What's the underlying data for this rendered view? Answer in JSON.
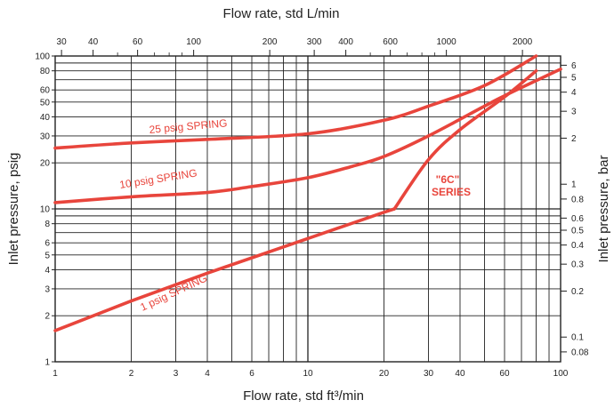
{
  "chart_data": {
    "type": "line",
    "title": "",
    "xlabel": "Flow rate, std ft³/min",
    "x2label": "Flow rate, std L/min",
    "ylabel": "Inlet pressure, psig",
    "y2label": "Inlet pressure, bar",
    "x_scale": "log",
    "y_scale": "log",
    "xlim": [
      1,
      100
    ],
    "ylim": [
      1,
      100
    ],
    "grid": true,
    "colors": {
      "curve": "#e8453c",
      "grid": "#222222"
    },
    "x_ticks": [
      "1",
      "2",
      "3",
      "4",
      "6",
      "10",
      "20",
      "30",
      "40",
      "60",
      "100"
    ],
    "x_tick_values": [
      1,
      2,
      3,
      4,
      6,
      10,
      20,
      30,
      40,
      60,
      100
    ],
    "y_ticks": [
      "1",
      "2",
      "3",
      "4",
      "5",
      "6",
      "8",
      "10",
      "20",
      "30",
      "40",
      "50",
      "60",
      "80",
      "100"
    ],
    "y_tick_values": [
      1,
      2,
      3,
      4,
      5,
      6,
      8,
      10,
      20,
      30,
      40,
      50,
      60,
      80,
      100
    ],
    "x2_ticks": [
      "30",
      "40",
      "60",
      "100",
      "200",
      "300",
      "400",
      "600",
      "1000",
      "2000"
    ],
    "x2_tick_values": [
      30,
      40,
      60,
      100,
      200,
      300,
      400,
      600,
      1000,
      2000
    ],
    "y2_ticks": [
      "0.08",
      "0.1",
      "0.2",
      "0.3",
      "0.4",
      "0.5",
      "0.6",
      "0.8",
      "1",
      "2",
      "3",
      "4",
      "5",
      "6"
    ],
    "y2_tick_values": [
      0.08,
      0.1,
      0.2,
      0.3,
      0.4,
      0.5,
      0.6,
      0.8,
      1,
      2,
      3,
      4,
      5,
      6
    ],
    "series": [
      {
        "name": "25 psig SPRING",
        "x": [
          1,
          2,
          4,
          10,
          20,
          30,
          50,
          80
        ],
        "y": [
          25,
          27,
          28.5,
          31,
          38,
          47,
          64,
          100
        ]
      },
      {
        "name": "10 psig SPRING",
        "x": [
          1,
          2,
          4,
          6,
          10,
          15,
          20,
          30,
          50,
          60,
          100
        ],
        "y": [
          11,
          12,
          12.8,
          14,
          16,
          19,
          22,
          30,
          47,
          55,
          82
        ]
      },
      {
        "name": "1 psig SPRING",
        "x": [
          1,
          2,
          4,
          10,
          20,
          22
        ],
        "y": [
          1.6,
          2.5,
          3.8,
          6.4,
          9.5,
          10
        ]
      },
      {
        "name": "\"6C\" SERIES",
        "x": [
          22,
          30,
          40,
          60,
          80
        ],
        "y": [
          10,
          21,
          33,
          54,
          80
        ]
      }
    ],
    "annotations": [
      "25 psig SPRING",
      "10 psig SPRING",
      "1 psig SPRING",
      "\"6C\"",
      "SERIES"
    ]
  }
}
